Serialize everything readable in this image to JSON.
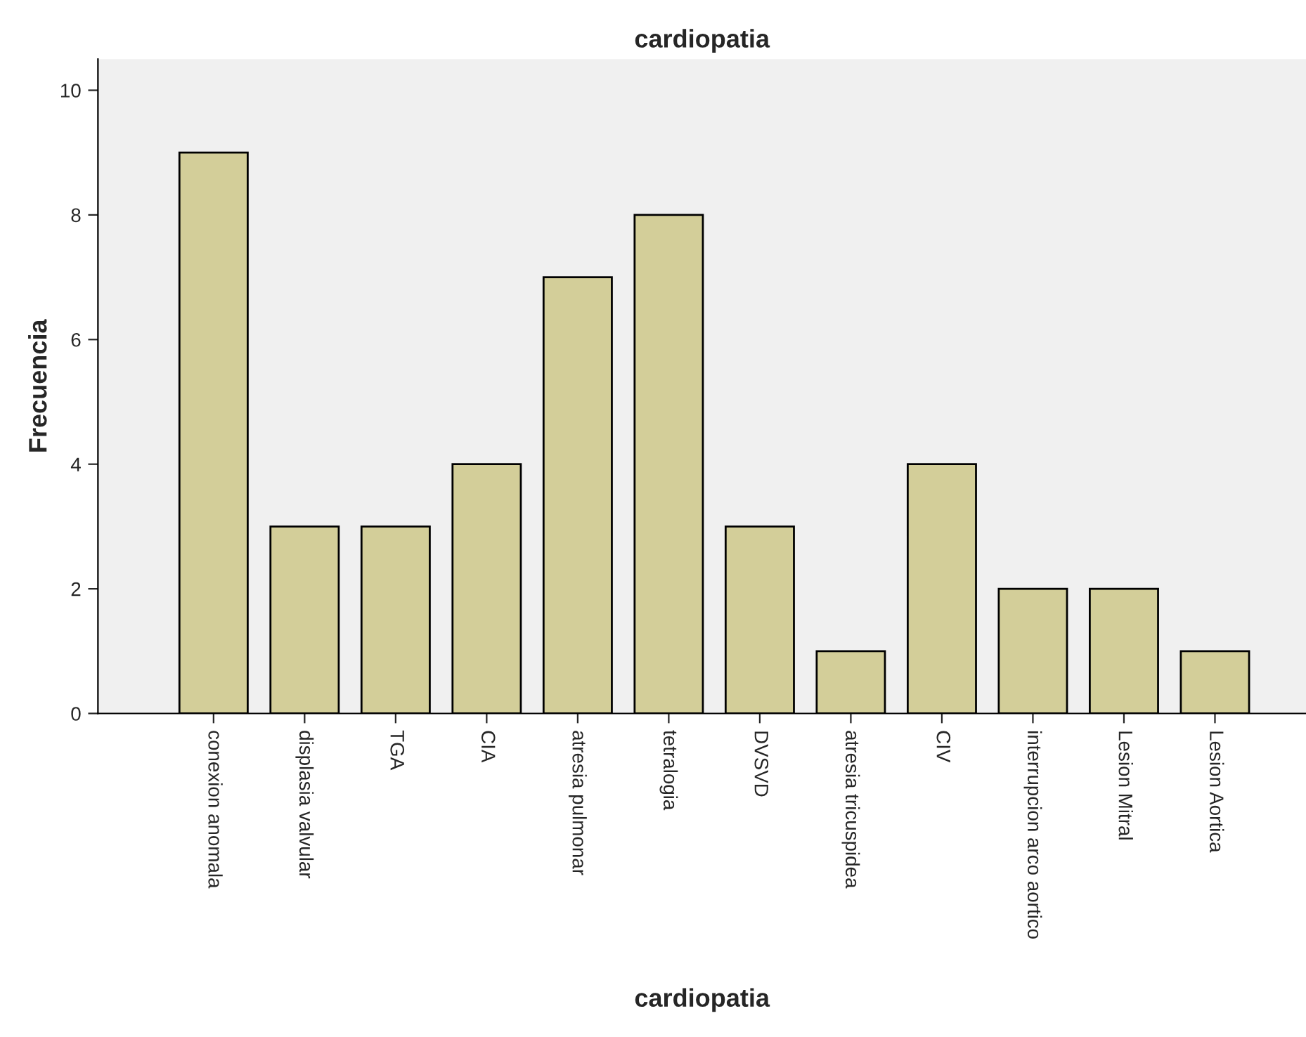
{
  "chart_data": {
    "type": "bar",
    "title": "cardiopatia",
    "xlabel": "cardiopatia",
    "ylabel": "Frecuencia",
    "categories": [
      "conexion anomala",
      "displasia valvular",
      "TGA",
      "CIA",
      "atresia pulmonar",
      "tetralogia",
      "DVSVD",
      "atresia tricuspidea",
      "CIV",
      "interrupcion arco aortico",
      "Lesion Mitral",
      "Lesion Aortica"
    ],
    "values": [
      9,
      3,
      3,
      4,
      7,
      8,
      3,
      1,
      4,
      2,
      2,
      1
    ],
    "color": "#d3ce99",
    "ylim": [
      0,
      10.5
    ],
    "yticks": [
      0,
      2,
      4,
      6,
      8,
      10
    ],
    "grid": false
  }
}
